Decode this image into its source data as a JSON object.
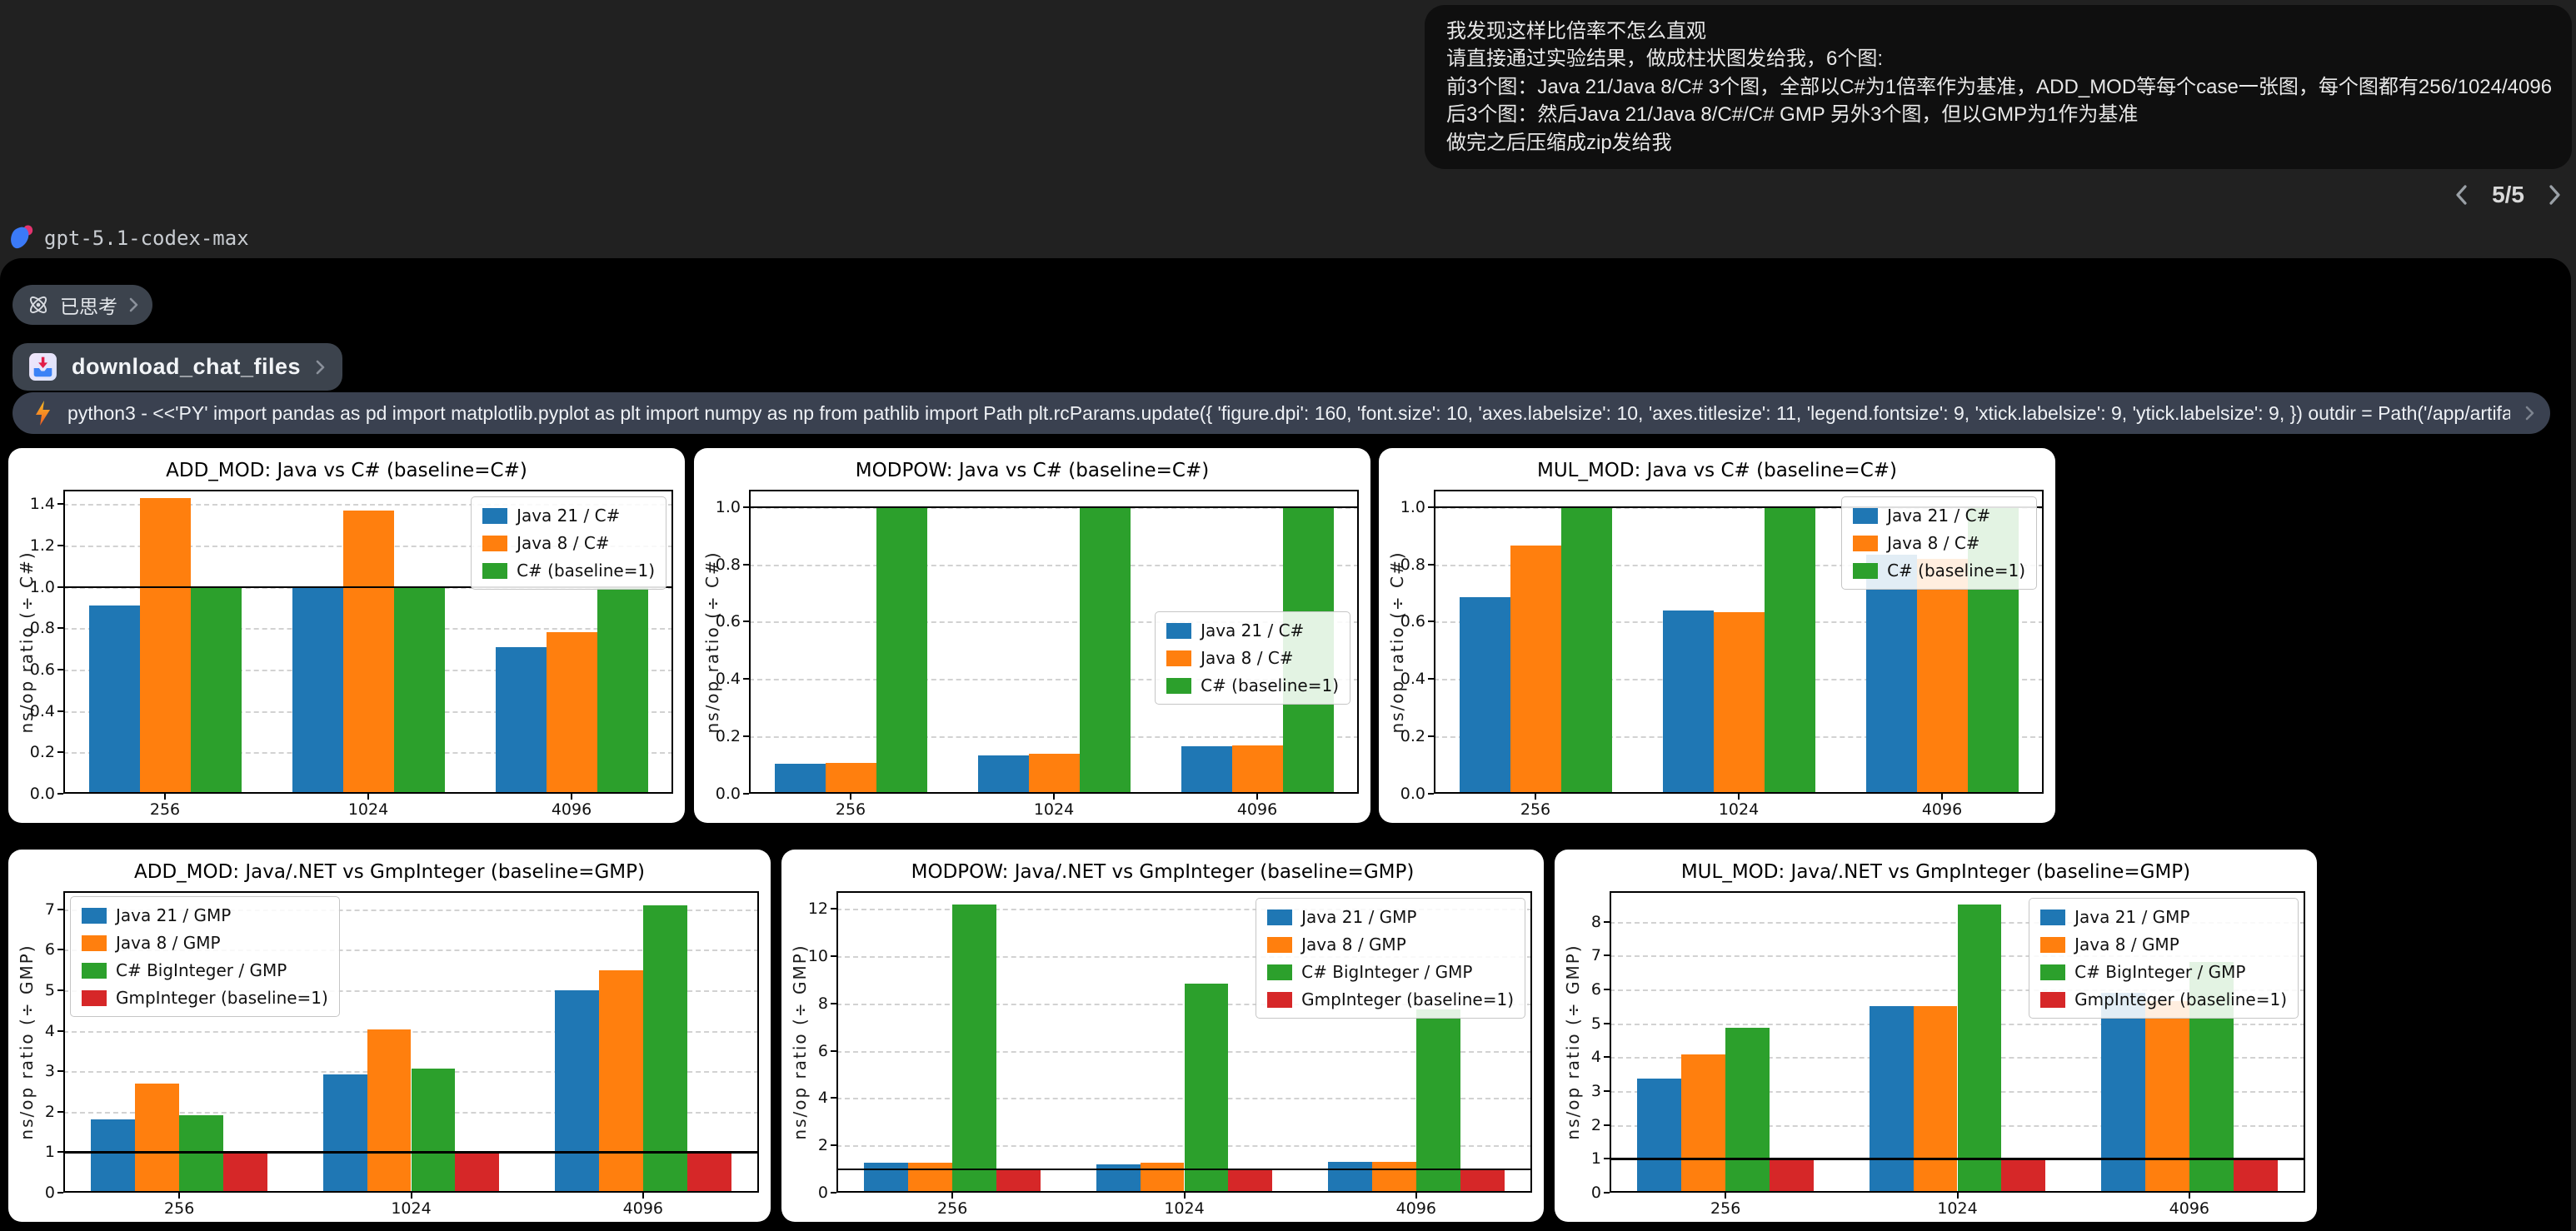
{
  "user_message": {
    "lines": [
      "我发现这样比倍率不怎么直观",
      "请直接通过实验结果，做成柱状图发给我，6个图:",
      "前3个图：Java 21/Java 8/C# 3个图，全部以C#为1倍率作为基准，ADD_MOD等每个case一张图，每个图都有256/1024/4096",
      "后3个图：然后Java 21/Java 8/C#/C# GMP 另外3个图，但以GMP为1作为基准",
      "做完之后压缩成zip发给我"
    ]
  },
  "pagination": {
    "current": "5/5"
  },
  "model_label": "gpt-5.1-codex-max",
  "thought_badge": {
    "label": "已思考"
  },
  "download_button": {
    "label": "download_chat_files"
  },
  "command_bar": {
    "text": "python3 - <<'PY' import pandas as pd import matplotlib.pyplot as plt import numpy as np from pathlib import Path plt.rcParams.update({ 'figure.dpi': 160, 'font.size': 10, 'axes.labelsize': 10, 'axes.titlesize': 11, 'legend.fontsize': 9, 'xtick.labelsize': 9, 'ytick.labelsize': 9, }) outdir = Path('/app/artifac…"
  },
  "colors": {
    "blue": "#1f77b4",
    "orange": "#ff7f0e",
    "green": "#2ca02c",
    "red": "#d62728"
  },
  "chart_data": [
    {
      "type": "bar",
      "title": "ADD_MOD: Java vs C# (baseline=C#)",
      "ylabel": "ns/op ratio (÷ C#)",
      "categories": [
        "256",
        "1024",
        "4096"
      ],
      "series": [
        {
          "name": "Java 21 / C#",
          "color": "#1f77b4",
          "values": [
            0.91,
            1.0,
            0.71
          ]
        },
        {
          "name": "Java 8 / C#",
          "color": "#ff7f0e",
          "values": [
            1.43,
            1.37,
            0.78
          ]
        },
        {
          "name": "C# (baseline=1)",
          "color": "#2ca02c",
          "values": [
            1.0,
            1.0,
            1.0
          ]
        }
      ],
      "yticks": [
        0.0,
        0.2,
        0.4,
        0.6,
        0.8,
        1.0,
        1.2,
        1.4
      ],
      "ydec": 1,
      "ylim": [
        0,
        1.47
      ],
      "baseline": 1.0,
      "grid": true,
      "legend_pos": "tr"
    },
    {
      "type": "bar",
      "title": "MODPOW: Java vs C# (baseline=C#)",
      "ylabel": "ns/op ratio (÷ C#)",
      "categories": [
        "256",
        "1024",
        "4096"
      ],
      "series": [
        {
          "name": "Java 21 / C#",
          "color": "#1f77b4",
          "values": [
            0.105,
            0.135,
            0.165
          ]
        },
        {
          "name": "Java 8 / C#",
          "color": "#ff7f0e",
          "values": [
            0.107,
            0.14,
            0.168
          ]
        },
        {
          "name": "C# (baseline=1)",
          "color": "#2ca02c",
          "values": [
            1.0,
            1.0,
            1.0
          ]
        }
      ],
      "yticks": [
        0.0,
        0.2,
        0.4,
        0.6,
        0.8,
        1.0
      ],
      "ydec": 1,
      "ylim": [
        0,
        1.06
      ],
      "baseline": 1.0,
      "grid": true,
      "legend_pos": "cr"
    },
    {
      "type": "bar",
      "title": "MUL_MOD: Java vs C# (baseline=C#)",
      "ylabel": "ns/op ratio (÷ C#)",
      "categories": [
        "256",
        "1024",
        "4096"
      ],
      "series": [
        {
          "name": "Java 21 / C#",
          "color": "#1f77b4",
          "values": [
            0.685,
            0.64,
            0.833
          ]
        },
        {
          "name": "Java 8 / C#",
          "color": "#ff7f0e",
          "values": [
            0.865,
            0.632,
            0.82
          ]
        },
        {
          "name": "C# (baseline=1)",
          "color": "#2ca02c",
          "values": [
            1.0,
            1.0,
            1.0
          ]
        }
      ],
      "yticks": [
        0.0,
        0.2,
        0.4,
        0.6,
        0.8,
        1.0
      ],
      "ydec": 1,
      "ylim": [
        0,
        1.06
      ],
      "baseline": 1.0,
      "grid": true,
      "legend_pos": "tr"
    },
    {
      "type": "bar",
      "title": "ADD_MOD: Java/.NET vs GmpInteger (baseline=GMP)",
      "ylabel": "ns/op ratio (÷ GMP)",
      "categories": [
        "256",
        "1024",
        "4096"
      ],
      "series": [
        {
          "name": "Java 21 / GMP",
          "color": "#1f77b4",
          "values": [
            1.82,
            2.93,
            5.0
          ]
        },
        {
          "name": "Java 8 / GMP",
          "color": "#ff7f0e",
          "values": [
            2.7,
            4.03,
            5.5
          ]
        },
        {
          "name": "C# BigInteger / GMP",
          "color": "#2ca02c",
          "values": [
            1.92,
            3.06,
            7.1
          ]
        },
        {
          "name": "GmpInteger (baseline=1)",
          "color": "#d62728",
          "values": [
            1.0,
            1.0,
            1.0
          ]
        }
      ],
      "yticks": [
        0,
        1,
        2,
        3,
        4,
        5,
        6,
        7
      ],
      "ydec": 0,
      "ylim": [
        0,
        7.45
      ],
      "baseline": 1.0,
      "grid": true,
      "legend_pos": "tl"
    },
    {
      "type": "bar",
      "title": "MODPOW: Java/.NET vs GmpInteger (baseline=GMP)",
      "ylabel": "ns/op ratio (÷ GMP)",
      "categories": [
        "256",
        "1024",
        "4096"
      ],
      "series": [
        {
          "name": "Java 21 / GMP",
          "color": "#1f77b4",
          "values": [
            1.27,
            1.2,
            1.3
          ]
        },
        {
          "name": "Java 8 / GMP",
          "color": "#ff7f0e",
          "values": [
            1.27,
            1.27,
            1.3
          ]
        },
        {
          "name": "C# BigInteger / GMP",
          "color": "#2ca02c",
          "values": [
            12.2,
            8.85,
            7.75
          ]
        },
        {
          "name": "GmpInteger (baseline=1)",
          "color": "#d62728",
          "values": [
            1.0,
            1.0,
            1.0
          ]
        }
      ],
      "yticks": [
        0,
        2,
        4,
        6,
        8,
        10,
        12
      ],
      "ydec": 0,
      "ylim": [
        0,
        12.75
      ],
      "baseline": 1.0,
      "grid": true,
      "legend_pos": "tr"
    },
    {
      "type": "bar",
      "title": "MUL_MOD: Java/.NET vs GmpInteger (baseline=GMP)",
      "ylabel": "ns/op ratio (÷ GMP)",
      "categories": [
        "256",
        "1024",
        "4096"
      ],
      "series": [
        {
          "name": "Java 21 / GMP",
          "color": "#1f77b4",
          "values": [
            3.38,
            5.5,
            5.9
          ]
        },
        {
          "name": "Java 8 / GMP",
          "color": "#ff7f0e",
          "values": [
            4.08,
            5.5,
            5.65
          ]
        },
        {
          "name": "C# BigInteger / GMP",
          "color": "#2ca02c",
          "values": [
            4.88,
            8.5,
            6.8
          ]
        },
        {
          "name": "GmpInteger (baseline=1)",
          "color": "#d62728",
          "values": [
            1.0,
            1.0,
            1.0
          ]
        }
      ],
      "yticks": [
        0,
        1,
        2,
        3,
        4,
        5,
        6,
        7,
        8
      ],
      "ydec": 0,
      "ylim": [
        0,
        8.9
      ],
      "baseline": 1.0,
      "grid": true,
      "legend_pos": "tr"
    }
  ]
}
